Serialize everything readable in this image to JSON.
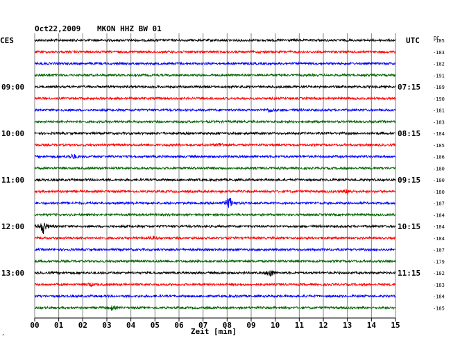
{
  "header": {
    "date": "Oct22,2009",
    "station": "MKON HHZ BW 01",
    "left_zone": "CES",
    "right_zone": "UTC",
    "dc_label": "DC"
  },
  "chart_data": {
    "type": "line",
    "title": "Oct22,2009   MKON HHZ BW 01",
    "xlabel": "Zeit [min]",
    "ylabel": "",
    "xlim": [
      0,
      15
    ],
    "x_ticks": [
      "00",
      "01",
      "02",
      "03",
      "04",
      "05",
      "06",
      "07",
      "08",
      "09",
      "10",
      "11",
      "12",
      "13",
      "14",
      "15"
    ],
    "grid": true,
    "trace_count": 24,
    "trace_interval_min": 15,
    "trace_colors": [
      "#000000",
      "#ff0000",
      "#0000ff",
      "#006400"
    ],
    "left_time_labels": [
      {
        "trace": 4,
        "label": "09:00"
      },
      {
        "trace": 8,
        "label": "10:00"
      },
      {
        "trace": 12,
        "label": "11:00"
      },
      {
        "trace": 16,
        "label": "12:00"
      },
      {
        "trace": 20,
        "label": "13:00"
      }
    ],
    "right_time_labels": [
      {
        "trace": 4,
        "label": "07:15"
      },
      {
        "trace": 8,
        "label": "08:15"
      },
      {
        "trace": 12,
        "label": "09:15"
      },
      {
        "trace": 16,
        "label": "10:15"
      },
      {
        "trace": 20,
        "label": "11:15"
      }
    ],
    "dc_offsets": [
      "-185",
      "-183",
      "-182",
      "-191",
      "-189",
      "-190",
      "-181",
      "-183",
      "-184",
      "-185",
      "-186",
      "-180",
      "-180",
      "-180",
      "-187",
      "-184",
      "-184",
      "-184",
      "-187",
      "-179",
      "-182",
      "-183",
      "-184",
      "-185"
    ],
    "events": [
      {
        "trace": 6,
        "minute": 9.8,
        "amplitude": 0.4
      },
      {
        "trace": 9,
        "minute": 7.7,
        "amplitude": 0.35
      },
      {
        "trace": 10,
        "minute": 1.6,
        "amplitude": 0.5
      },
      {
        "trace": 13,
        "minute": 13.0,
        "amplitude": 0.55
      },
      {
        "trace": 14,
        "minute": 8.1,
        "amplitude": 1.3
      },
      {
        "trace": 16,
        "minute": 0.35,
        "amplitude": 1.5
      },
      {
        "trace": 17,
        "minute": 4.9,
        "amplitude": 0.3
      },
      {
        "trace": 20,
        "minute": 9.8,
        "amplitude": 0.9
      },
      {
        "trace": 21,
        "minute": 2.3,
        "amplitude": 0.35
      },
      {
        "trace": 23,
        "minute": 3.2,
        "amplitude": 0.4
      }
    ]
  }
}
